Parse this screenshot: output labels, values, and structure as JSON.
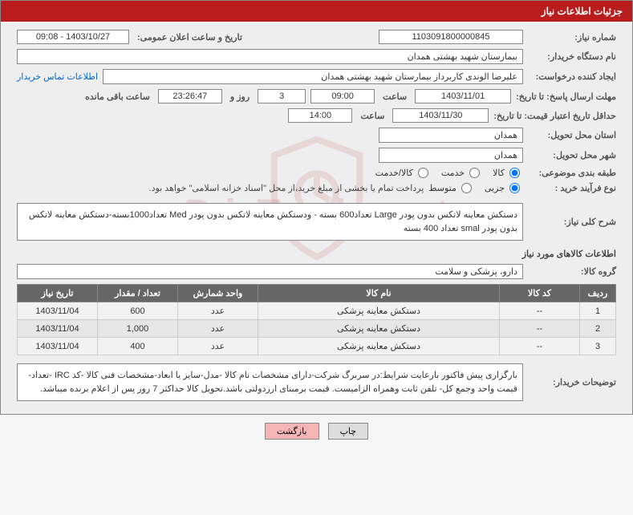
{
  "header": {
    "title": "جزئیات اطلاعات نیاز"
  },
  "watermark": "PrisTender.net",
  "fields": {
    "need_no_label": "شماره نیاز:",
    "need_no": "1103091800000845",
    "announce_label": "تاریخ و ساعت اعلان عمومی:",
    "announce_val": "1403/10/27 - 09:08",
    "buyer_label": "نام دستگاه خریدار:",
    "buyer_val": "بیمارستان شهید بهشتی همدان",
    "requester_label": "ایجاد کننده درخواست:",
    "requester_val": "علیرضا الوندی کاربرداز بیمارستان شهید بهشتی همدان",
    "contact_link": "اطلاعات تماس خریدار",
    "deadline_label": "مهلت ارسال پاسخ: تا تاریخ:",
    "deadline_date": "1403/11/01",
    "hour_label": "ساعت",
    "deadline_time": "09:00",
    "days_remain": "3",
    "days_and": "روز و",
    "time_remain": "23:26:47",
    "remain_label": "ساعت باقی مانده",
    "validity_label": "حداقل تاریخ اعتبار قیمت: تا تاریخ:",
    "validity_date": "1403/11/30",
    "validity_time": "14:00",
    "province_label": "استان محل تحویل:",
    "province_val": "همدان",
    "city_label": "شهر محل تحویل:",
    "city_val": "همدان",
    "category_label": "طبقه بندی موضوعی:",
    "radio_goods": "کالا",
    "radio_service": "خدمت",
    "radio_both": "کالا/خدمت",
    "purchase_type_label": "نوع فرآیند خرید :",
    "radio_partial": "جزیی",
    "radio_medium": "متوسط",
    "payment_note": "پرداخت تمام یا بخشی از مبلغ خرید،از محل \"اسناد خزانه اسلامی\" خواهد بود.",
    "desc_label": "شرح کلی نیاز:",
    "desc_val": "دستکش معاینه لاتکس بدون پودر Large تعداد600 بسته - ودستکش معاینه لاتکس بدون پودر Med تعداد1000بسته-دستکش معاینه لاتکس بدون پودر smal تعداد 400 بسته",
    "goods_section": "اطلاعات کالاهای مورد نیاز",
    "group_label": "گروه کالا:",
    "group_val": "دارو، پزشکی و سلامت",
    "buyer_note_label": "توضیحات خریدار:",
    "buyer_note_val": "بارگزاری پیش فاکتور بارعایت شرایط:در سربرگ شرکت-دارای مشخصات نام کالا -مدل-سایز یا ابعاد-مشخصات فنی کالا -کد IRC -تعداد-قیمت واحد وجمع کل- تلفن ثابت وهمراه الزامیست. قیمت برمبنای ارزدولتی باشد.تحویل کالا حداکثر 7 روز پس از اعلام برنده میباشد."
  },
  "table": {
    "headers": {
      "row": "ردیف",
      "code": "کد کالا",
      "name": "نام کالا",
      "unit": "واحد شمارش",
      "qty": "تعداد / مقدار",
      "date": "تاریخ نیاز"
    },
    "rows": [
      {
        "n": "1",
        "code": "--",
        "name": "دستکش معاینه پزشکی",
        "unit": "عدد",
        "qty": "600",
        "date": "1403/11/04"
      },
      {
        "n": "2",
        "code": "--",
        "name": "دستکش معاینه پزشکی",
        "unit": "عدد",
        "qty": "1,000",
        "date": "1403/11/04"
      },
      {
        "n": "3",
        "code": "--",
        "name": "دستکش معاینه پزشکی",
        "unit": "عدد",
        "qty": "400",
        "date": "1403/11/04"
      }
    ]
  },
  "buttons": {
    "print": "چاپ",
    "back": "بازگشت"
  }
}
